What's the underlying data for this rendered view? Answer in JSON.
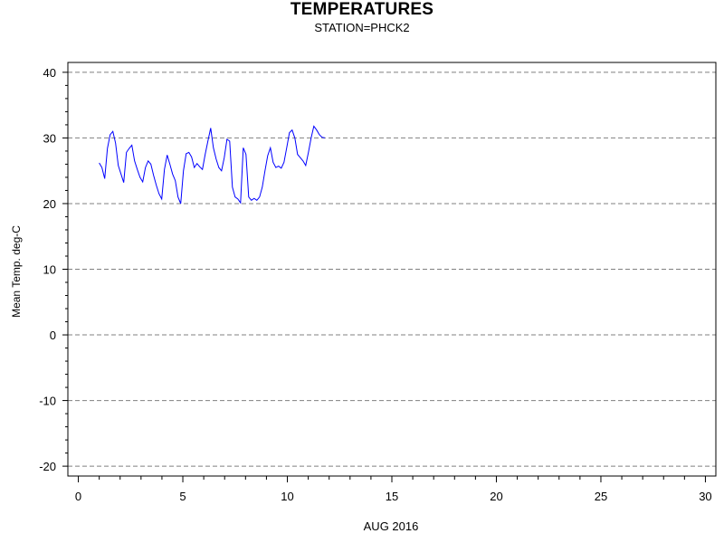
{
  "chart_data": {
    "type": "line",
    "title": "TEMPERATURES",
    "subtitle": "STATION=PHCK2",
    "xlabel": "AUG 2016",
    "ylabel": "Mean Temp. deg-C",
    "xlim": [
      -0.5,
      30.5
    ],
    "ylim": [
      -21.5,
      41.5
    ],
    "x_ticks": [
      0,
      5,
      10,
      15,
      20,
      25,
      30
    ],
    "x_tick_labels": [
      "0",
      "5",
      "10",
      "15",
      "20",
      "25",
      "30"
    ],
    "y_ticks": [
      -20,
      -10,
      0,
      10,
      20,
      30,
      40
    ],
    "y_tick_labels": [
      "-20",
      "-10",
      "0",
      "10",
      "20",
      "30",
      "40"
    ],
    "grid": "horizontal-dashed",
    "legend": "none",
    "series": [
      {
        "color": "#0000ff",
        "x": [
          1.0,
          1.13,
          1.26,
          1.39,
          1.52,
          1.65,
          1.78,
          1.91,
          2.04,
          2.17,
          2.3,
          2.43,
          2.56,
          2.69,
          2.82,
          2.95,
          3.08,
          3.21,
          3.34,
          3.47,
          3.6,
          3.73,
          3.86,
          3.99,
          4.12,
          4.25,
          4.38,
          4.51,
          4.64,
          4.77,
          4.9,
          5.03,
          5.16,
          5.29,
          5.42,
          5.55,
          5.68,
          5.81,
          5.94,
          6.07,
          6.2,
          6.33,
          6.46,
          6.59,
          6.72,
          6.85,
          6.98,
          7.11,
          7.24,
          7.37,
          7.5,
          7.63,
          7.76,
          7.89,
          8.02,
          8.15,
          8.28,
          8.41,
          8.54,
          8.67,
          8.8,
          8.93,
          9.06,
          9.19,
          9.32,
          9.45,
          9.58,
          9.71,
          9.84,
          9.97,
          10.1,
          10.23,
          10.36,
          10.49,
          10.62,
          10.75,
          10.88,
          11.01,
          11.14,
          11.27,
          11.4,
          11.53,
          11.66,
          11.79
        ],
        "y": [
          26.2,
          25.5,
          23.8,
          28.4,
          30.5,
          31.0,
          29.2,
          25.8,
          24.5,
          23.2,
          27.8,
          28.4,
          28.9,
          26.5,
          25.2,
          24.0,
          23.3,
          25.5,
          26.5,
          26.0,
          24.3,
          22.8,
          21.5,
          20.7,
          25.2,
          27.4,
          26.0,
          24.5,
          23.5,
          21.0,
          20.0,
          25.0,
          27.6,
          27.8,
          27.1,
          25.5,
          26.1,
          25.6,
          25.2,
          27.5,
          29.5,
          31.5,
          28.5,
          26.8,
          25.5,
          25.0,
          27.0,
          29.8,
          29.5,
          22.5,
          21.0,
          20.7,
          20.1,
          28.5,
          27.5,
          21.0,
          20.5,
          20.8,
          20.5,
          21.0,
          22.5,
          25.0,
          27.3,
          28.5,
          26.3,
          25.5,
          25.7,
          25.4,
          26.3,
          28.5,
          30.8,
          31.2,
          30.0,
          27.5,
          27.0,
          26.5,
          25.8,
          27.8,
          30.0,
          31.8,
          31.2,
          30.5,
          30.1,
          30.0
        ]
      }
    ]
  }
}
